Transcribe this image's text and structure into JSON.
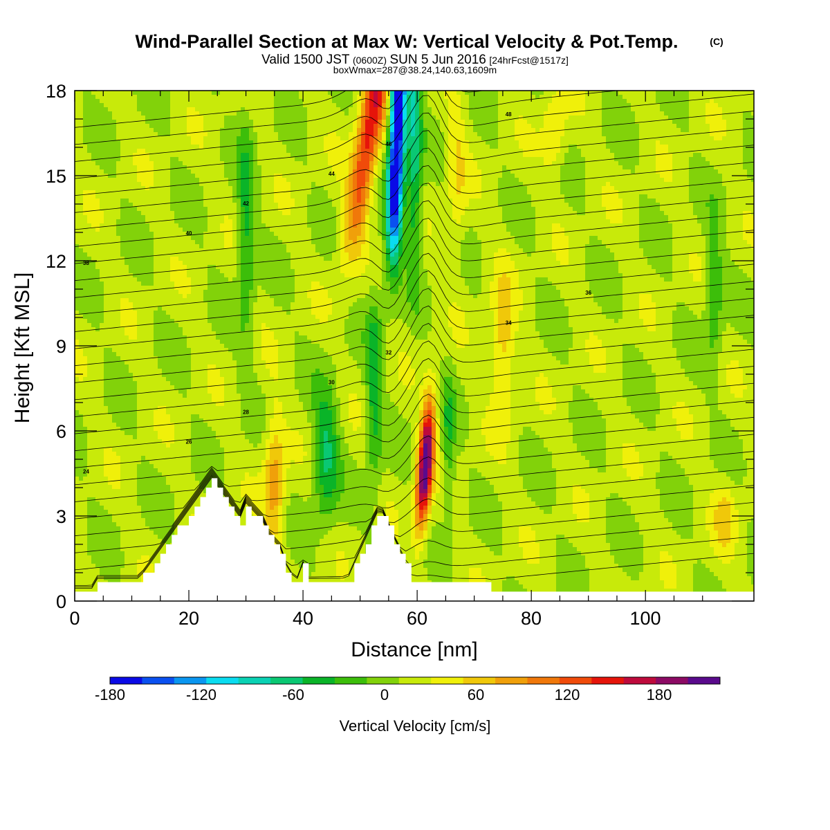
{
  "title": "Wind-Parallel Section at Max W: Vertical Velocity & Pot.Temp.",
  "title_mark": "(C)",
  "subtitle": {
    "prefix": "Valid 1500 JST",
    "utc": "(0600Z)",
    "date": "SUN 5 Jun 2016",
    "forecast": "[24hrFcst@1517z]"
  },
  "box_line": "boxWmax=287@38.24,140.63,1609m",
  "chart_data": {
    "type": "heatmap",
    "xlabel": "Distance [nm]",
    "ylabel": "Height [Kft MSL]",
    "xlim": [
      0,
      119
    ],
    "ylim": [
      0,
      18
    ],
    "x_ticks": [
      "0",
      "20",
      "40",
      "60",
      "80",
      "100"
    ],
    "y_ticks": [
      "0",
      "3",
      "6",
      "9",
      "12",
      "15",
      "18"
    ],
    "colorbar": {
      "label": "Vertical Velocity [cm/s]",
      "range": [
        -180,
        210
      ],
      "tick_labels": [
        "-180",
        "-120",
        "-60",
        "0",
        "60",
        "120",
        "180"
      ],
      "colors": [
        "#0a0ae6",
        "#0a50f0",
        "#0a96f0",
        "#0adcf0",
        "#0ad2b4",
        "#0ac873",
        "#0ab428",
        "#3cbe0a",
        "#82d20a",
        "#c8ea0a",
        "#f0f00a",
        "#f0c80a",
        "#f0a00a",
        "#f0780a",
        "#f04b0a",
        "#e6140a",
        "#be0a3c",
        "#8c0a64",
        "#5a0a8c"
      ]
    },
    "vertical_velocity_features": [
      {
        "kind": "updraft",
        "x": 61.5,
        "y": [
          2,
          7.5
        ],
        "peak_cm_s": 200
      },
      {
        "kind": "updraft",
        "x": 52,
        "y": [
          12,
          18
        ],
        "peak_cm_s": 120
      },
      {
        "kind": "updraft",
        "x": 35,
        "y": [
          2.5,
          6.5
        ],
        "peak_cm_s": 70
      },
      {
        "kind": "downdraft",
        "x": 56.5,
        "y": [
          12,
          18
        ],
        "peak_cm_s": -180
      },
      {
        "kind": "downdraft",
        "x": 44,
        "y": [
          3,
          8
        ],
        "peak_cm_s": -60
      }
    ],
    "terrain_peaks": [
      {
        "x": 24,
        "height_kft": 4.2
      },
      {
        "x": 53.5,
        "height_kft": 3.2
      }
    ],
    "theta_contour_labels": [
      "24",
      "26",
      "28",
      "30",
      "32",
      "34",
      "36",
      "38",
      "40",
      "42",
      "44",
      "46",
      "48"
    ]
  }
}
